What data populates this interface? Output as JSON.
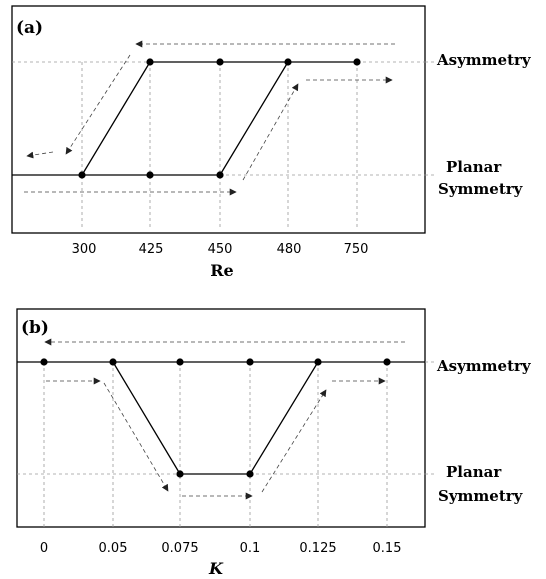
{
  "panel_a": {
    "tag": "(a)",
    "xlabel": "Re",
    "state_top": "Asymmetry",
    "state_bottom_1": "Planar",
    "state_bottom_2": "Symmetry",
    "ticks": [
      "300",
      "425",
      "450",
      "480",
      "750"
    ]
  },
  "panel_b": {
    "tag": "(b)",
    "xlabel": "K",
    "state_top": "Asymmetry",
    "state_bottom_1": "Planar",
    "state_bottom_2": "Symmetry",
    "ticks": [
      "0",
      "0.05",
      "0.075",
      "0.1",
      "0.125",
      "0.15"
    ]
  },
  "chart_data": [
    {
      "type": "line",
      "panel": "a",
      "xlabel": "Re",
      "x_ticks": [
        "300",
        "425",
        "450",
        "480",
        "750"
      ],
      "states": [
        "Planar Symmetry",
        "Asymmetry"
      ],
      "points": [
        {
          "x": "300",
          "state": "Planar Symmetry"
        },
        {
          "x": "425",
          "state": "Planar Symmetry"
        },
        {
          "x": "450",
          "state": "Planar Symmetry"
        },
        {
          "x": "425",
          "state": "Asymmetry"
        },
        {
          "x": "450",
          "state": "Asymmetry"
        },
        {
          "x": "480",
          "state": "Asymmetry"
        },
        {
          "x": "750",
          "state": "Asymmetry"
        }
      ]
    },
    {
      "type": "line",
      "panel": "b",
      "xlabel": "K",
      "x_ticks": [
        "0",
        "0.05",
        "0.075",
        "0.1",
        "0.125",
        "0.15"
      ],
      "states": [
        "Planar Symmetry",
        "Asymmetry"
      ],
      "points": [
        {
          "x": "0",
          "state": "Asymmetry"
        },
        {
          "x": "0.05",
          "state": "Asymmetry"
        },
        {
          "x": "0.075",
          "state": "Asymmetry"
        },
        {
          "x": "0.1",
          "state": "Asymmetry"
        },
        {
          "x": "0.125",
          "state": "Asymmetry"
        },
        {
          "x": "0.15",
          "state": "Asymmetry"
        },
        {
          "x": "0.075",
          "state": "Planar Symmetry"
        },
        {
          "x": "0.1",
          "state": "Planar Symmetry"
        }
      ]
    }
  ]
}
